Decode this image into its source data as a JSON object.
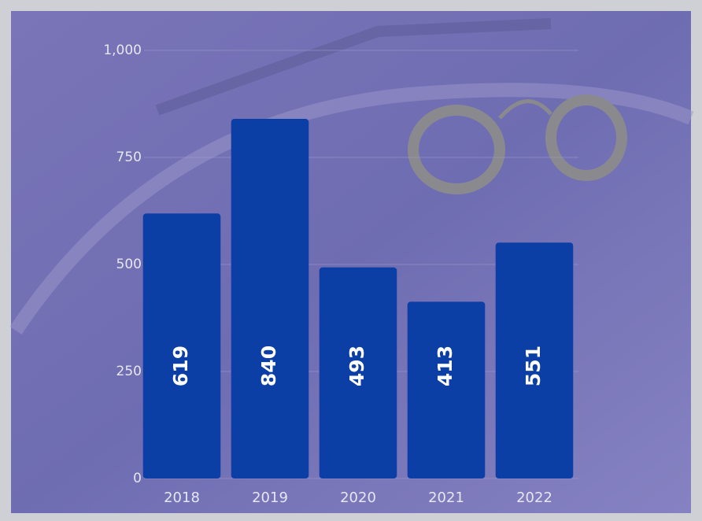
{
  "chart_data": {
    "type": "bar",
    "categories": [
      "2018",
      "2019",
      "2020",
      "2021",
      "2022"
    ],
    "values": [
      619,
      840,
      493,
      413,
      551
    ],
    "color": "#0c3fa6",
    "ylim": [
      0,
      1000
    ],
    "yticks": [
      0,
      250,
      500,
      750,
      {
        "value": 1000,
        "label": "1,000"
      }
    ],
    "grid": true
  }
}
